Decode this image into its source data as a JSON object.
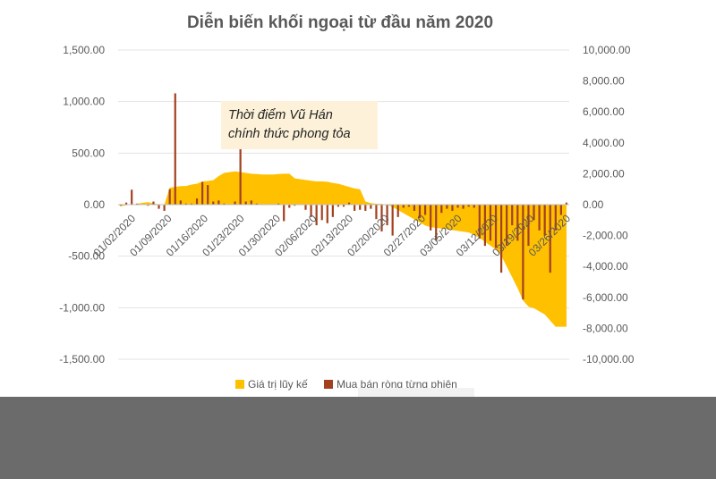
{
  "chart_data": {
    "type": "bar",
    "title": "Diễn biến khối ngoại từ đầu năm 2020",
    "y_left": {
      "ticks": [
        "1,500.00",
        "1,000.00",
        "500.00",
        "0.00",
        "-500.00",
        "-1,000.00",
        "-1,500.00"
      ],
      "range": [
        -1500,
        1500
      ]
    },
    "y_right": {
      "ticks": [
        "10,000.00",
        "8,000.00",
        "6,000.00",
        "4,000.00",
        "2,000.00",
        "0.00",
        "-2,000.00",
        "-4,000.00",
        "-6,000.00",
        "-8,000.00",
        "-10,000.00"
      ],
      "range": [
        -10000,
        10000
      ]
    },
    "x_ticks": [
      "01/02/2020",
      "01/09/2020",
      "01/16/2020",
      "01/23/2020",
      "01/30/2020",
      "02/06/2020",
      "02/13/2020",
      "02/20/2020",
      "02/27/2020",
      "03/05/2020",
      "03/12/2020",
      "03/19/2020",
      "03/26/2020"
    ],
    "series": [
      {
        "name": "Giá trị lũy kế",
        "kind": "area",
        "axis": "right",
        "color": "#ffc000",
        "values": [
          -100,
          -40,
          10,
          60,
          120,
          160,
          80,
          20,
          -10,
          1100,
          1150,
          1200,
          1210,
          1300,
          1350,
          1500,
          1530,
          1580,
          1850,
          2050,
          2100,
          2150,
          2100,
          2050,
          2000,
          1980,
          1950,
          1950,
          1950,
          1980,
          2000,
          2000,
          1700,
          1650,
          1600,
          1550,
          1500,
          1500,
          1480,
          1400,
          1350,
          1250,
          1150,
          1050,
          1000,
          200,
          100,
          60,
          50,
          0,
          -150,
          -350,
          -550,
          -750,
          -950,
          -1150,
          -1350,
          -1450,
          -1500,
          -1550,
          -1600,
          -1650,
          -1700,
          -1750,
          -1800,
          -1950,
          -2150,
          -2400,
          -2650,
          -2900,
          -3300,
          -4000,
          -4700,
          -5400,
          -6200,
          -6600,
          -6700,
          -6900,
          -7100,
          -7500,
          -7900,
          -7900,
          -7900
        ]
      },
      {
        "name": "Mua bán ròng từng phiên",
        "kind": "bar",
        "axis": "left",
        "color": "#a3401f",
        "values": [
          -10,
          20,
          145,
          10,
          0,
          -10,
          30,
          -40,
          -60,
          150,
          1080,
          40,
          10,
          10,
          60,
          220,
          190,
          30,
          40,
          10,
          0,
          30,
          540,
          30,
          40,
          10,
          0,
          0,
          0,
          10,
          -160,
          -30,
          -10,
          0,
          -50,
          -120,
          -200,
          -150,
          -180,
          -120,
          -20,
          -20,
          20,
          -60,
          -50,
          -60,
          -40,
          -140,
          -260,
          -200,
          -300,
          -120,
          -30,
          -20,
          -60,
          -130,
          -100,
          -250,
          -350,
          -80,
          -40,
          -60,
          -30,
          -40,
          -20,
          -30,
          -330,
          -400,
          -350,
          -420,
          -660,
          -400,
          -200,
          -350,
          -920,
          -400,
          -150,
          -250,
          -300,
          -660,
          -250,
          -100,
          20
        ]
      }
    ],
    "annotation": {
      "line1": "Thời điểm Vũ Hán",
      "line2": "chính thức phong tỏa"
    },
    "legend": {
      "placement": "bottom",
      "items": [
        "Giá trị lũy kế",
        "Mua bán ròng từng phiên"
      ]
    },
    "grid": true
  }
}
